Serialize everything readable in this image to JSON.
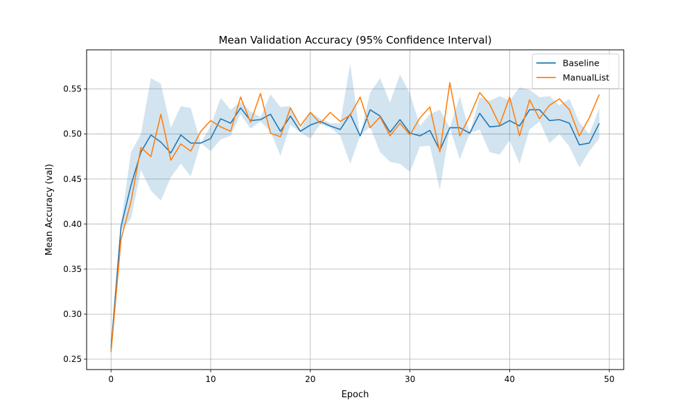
{
  "chart_data": {
    "type": "line",
    "title": "Mean Validation Accuracy (95% Confidence Interval)",
    "xlabel": "Epoch",
    "ylabel": "Mean Accuracy (val)",
    "xlim": [
      -2.45,
      51.45
    ],
    "ylim": [
      0.2385,
      0.5935
    ],
    "xticks": [
      0,
      10,
      20,
      30,
      40,
      50
    ],
    "yticks": [
      0.25,
      0.3,
      0.35,
      0.4,
      0.45,
      0.5,
      0.55
    ],
    "xtick_labels": [
      "0",
      "10",
      "20",
      "30",
      "40",
      "50"
    ],
    "ytick_labels": [
      "0.25",
      "0.30",
      "0.35",
      "0.40",
      "0.45",
      "0.50",
      "0.55"
    ],
    "grid": true,
    "legend_position": "top-right",
    "x": [
      0,
      1,
      2,
      3,
      4,
      5,
      6,
      7,
      8,
      9,
      10,
      11,
      12,
      13,
      14,
      15,
      16,
      17,
      18,
      19,
      20,
      21,
      22,
      23,
      24,
      25,
      26,
      27,
      28,
      29,
      30,
      31,
      32,
      33,
      34,
      35,
      36,
      37,
      38,
      39,
      40,
      41,
      42,
      43,
      44,
      45,
      46,
      47,
      48,
      49
    ],
    "series": [
      {
        "name": "Baseline",
        "color": "#1f77b4",
        "values": [
          0.262,
          0.397,
          0.443,
          0.48,
          0.499,
          0.491,
          0.479,
          0.499,
          0.49,
          0.49,
          0.495,
          0.517,
          0.512,
          0.529,
          0.515,
          0.516,
          0.522,
          0.503,
          0.52,
          0.503,
          0.51,
          0.514,
          0.509,
          0.505,
          0.522,
          0.498,
          0.527,
          0.52,
          0.502,
          0.516,
          0.501,
          0.498,
          0.504,
          0.482,
          0.507,
          0.507,
          0.501,
          0.523,
          0.508,
          0.509,
          0.515,
          0.509,
          0.527,
          0.527,
          0.515,
          0.516,
          0.512,
          0.488,
          0.49,
          0.512
        ],
        "ci_lower": [
          0.262,
          0.392,
          0.406,
          0.46,
          0.437,
          0.426,
          0.452,
          0.467,
          0.453,
          0.49,
          0.481,
          0.494,
          0.498,
          0.522,
          0.506,
          0.514,
          0.503,
          0.476,
          0.51,
          0.502,
          0.495,
          0.511,
          0.507,
          0.498,
          0.467,
          0.498,
          0.508,
          0.48,
          0.469,
          0.467,
          0.458,
          0.486,
          0.487,
          0.438,
          0.507,
          0.472,
          0.501,
          0.505,
          0.48,
          0.477,
          0.493,
          0.467,
          0.505,
          0.514,
          0.49,
          0.5,
          0.486,
          0.463,
          0.481,
          0.495
        ],
        "ci_upper": [
          0.262,
          0.401,
          0.48,
          0.5,
          0.562,
          0.556,
          0.507,
          0.531,
          0.529,
          0.49,
          0.509,
          0.54,
          0.527,
          0.536,
          0.525,
          0.519,
          0.544,
          0.53,
          0.531,
          0.505,
          0.525,
          0.517,
          0.512,
          0.512,
          0.578,
          0.498,
          0.546,
          0.562,
          0.535,
          0.566,
          0.545,
          0.509,
          0.522,
          0.527,
          0.507,
          0.542,
          0.501,
          0.541,
          0.537,
          0.542,
          0.537,
          0.552,
          0.549,
          0.541,
          0.542,
          0.532,
          0.539,
          0.513,
          0.5,
          0.529
        ]
      },
      {
        "name": "ManualList",
        "color": "#ff7f0e",
        "values": [
          0.258,
          0.383,
          0.425,
          0.485,
          0.475,
          0.522,
          0.471,
          0.489,
          0.481,
          0.503,
          0.515,
          0.508,
          0.503,
          0.541,
          0.513,
          0.545,
          0.501,
          0.497,
          0.529,
          0.509,
          0.524,
          0.512,
          0.524,
          0.514,
          0.521,
          0.541,
          0.507,
          0.519,
          0.498,
          0.512,
          0.499,
          0.518,
          0.53,
          0.48,
          0.557,
          0.498,
          0.52,
          0.546,
          0.533,
          0.51,
          0.541,
          0.498,
          0.538,
          0.517,
          0.532,
          0.539,
          0.527,
          0.498,
          0.518,
          0.544
        ]
      }
    ]
  }
}
